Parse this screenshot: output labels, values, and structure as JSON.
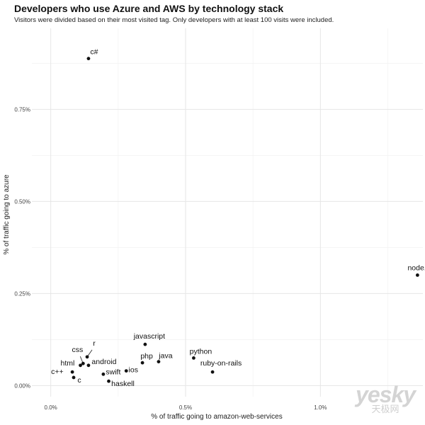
{
  "chart_data": {
    "type": "scatter",
    "title": "Developers who use Azure and AWS by technology stack",
    "subtitle": "Visitors were divided based on their most visited tag. Only developers with at least 100 visits were included.",
    "xlabel": "% of traffic going to amazon-web-services",
    "ylabel": "% of traffic going to azure",
    "xlim": [
      -0.07,
      1.38
    ],
    "ylim": [
      -0.03,
      0.97
    ],
    "x_ticks": [
      0.0,
      0.5,
      1.0
    ],
    "x_tick_labels": [
      "0.0%",
      "0.5%",
      "1.0%"
    ],
    "y_ticks": [
      0.0,
      0.25,
      0.5,
      0.75
    ],
    "y_tick_labels": [
      "0.00%",
      "0.25%",
      "0.50%",
      "0.75%"
    ],
    "grid": true,
    "points": [
      {
        "label": "c#",
        "x": 0.14,
        "y": 0.888
      },
      {
        "label": "node.js",
        "x": 1.36,
        "y": 0.3
      },
      {
        "label": "javascript",
        "x": 0.35,
        "y": 0.112
      },
      {
        "label": "python",
        "x": 0.53,
        "y": 0.075
      },
      {
        "label": "java",
        "x": 0.4,
        "y": 0.065
      },
      {
        "label": "php",
        "x": 0.34,
        "y": 0.062
      },
      {
        "label": "ruby-on-rails",
        "x": 0.6,
        "y": 0.037
      },
      {
        "label": "ios",
        "x": 0.28,
        "y": 0.04
      },
      {
        "label": "swift",
        "x": 0.195,
        "y": 0.031
      },
      {
        "label": "haskell",
        "x": 0.215,
        "y": 0.012
      },
      {
        "label": "android",
        "x": 0.14,
        "y": 0.055
      },
      {
        "label": "r",
        "x": 0.135,
        "y": 0.078
      },
      {
        "label": "css",
        "x": 0.12,
        "y": 0.06
      },
      {
        "label": "html",
        "x": 0.11,
        "y": 0.055
      },
      {
        "label": "c++",
        "x": 0.08,
        "y": 0.037
      },
      {
        "label": "c",
        "x": 0.085,
        "y": 0.022
      }
    ]
  },
  "watermark": {
    "main": "yesky",
    "sub": "天极网"
  }
}
